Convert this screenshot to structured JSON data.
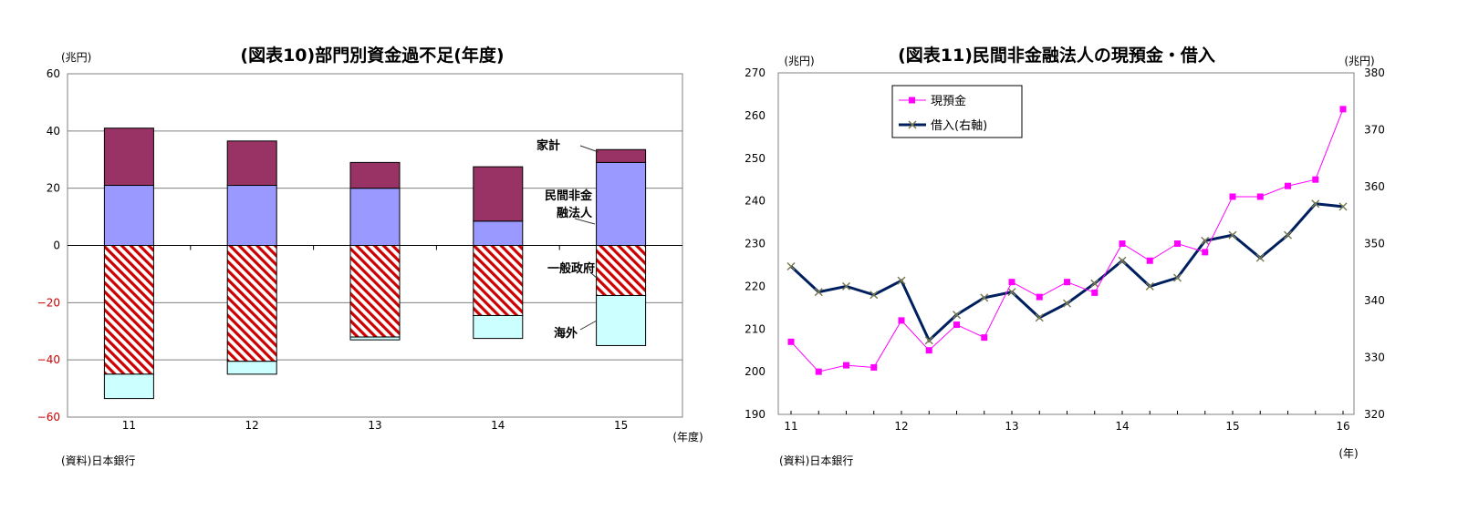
{
  "chart_data": [
    {
      "type": "bar",
      "stacked": true,
      "title": "(図表10)部門別資金過不足(年度)",
      "y_unit": "(兆円)",
      "x_unit": "(年度)",
      "source": "(資料)日本銀行",
      "ylim": [
        -60,
        60
      ],
      "yticks": [
        "60",
        "40",
        "20",
        "0",
        "−20",
        "−40",
        "−60"
      ],
      "ytick_values": [
        60,
        40,
        20,
        0,
        -20,
        -40,
        -60
      ],
      "categories": [
        "11",
        "12",
        "13",
        "14",
        "15"
      ],
      "series": [
        {
          "name": "民間非金融法人",
          "color": "#9999ff",
          "pattern": "solid",
          "values": [
            21,
            21,
            20,
            8.5,
            29
          ]
        },
        {
          "name": "家計",
          "color": "#993366",
          "pattern": "solid",
          "values": [
            20,
            15.5,
            9,
            19,
            4.5
          ]
        },
        {
          "name": "一般政府",
          "color": "#cc0000",
          "pattern": "hatch",
          "values": [
            -45,
            -40.5,
            -32,
            -24.5,
            -17.5
          ]
        },
        {
          "name": "海外",
          "color": "#ccffff",
          "pattern": "solid",
          "values": [
            -8.5,
            -4.5,
            -1,
            -8,
            -17.5
          ]
        }
      ],
      "annotations": {
        "kakei": "家計",
        "minkan_1": "民間非金",
        "minkan_2": "融法人",
        "seifu": "一般政府",
        "kaigai": "海外"
      }
    },
    {
      "type": "line",
      "title": "(図表11)民間非金融法人の現預金・借入",
      "y_unit_left": "(兆円)",
      "y_unit_right": "(兆円)",
      "x_unit": "(年)",
      "source": "(資料)日本銀行",
      "ylim_left": [
        190,
        270
      ],
      "ylim_right": [
        320,
        380
      ],
      "yticks_left": [
        "270",
        "260",
        "250",
        "240",
        "230",
        "220",
        "210",
        "200",
        "190"
      ],
      "ytick_values_left": [
        270,
        260,
        250,
        240,
        230,
        220,
        210,
        200,
        190
      ],
      "yticks_right": [
        "380",
        "370",
        "360",
        "350",
        "340",
        "330",
        "320"
      ],
      "ytick_values_right": [
        380,
        370,
        360,
        350,
        340,
        330,
        320
      ],
      "x_labels": [
        "11",
        "12",
        "13",
        "14",
        "15",
        "16"
      ],
      "x_label_values": [
        0,
        4,
        8,
        12,
        16,
        20
      ],
      "series": [
        {
          "name": "現預金",
          "axis": "left",
          "color": "#ff00ff",
          "values": [
            207,
            200,
            201.5,
            201,
            212,
            205,
            211,
            208,
            221,
            217.5,
            221,
            218.5,
            230,
            226,
            230,
            228,
            241,
            241,
            243.5,
            245,
            261.5
          ]
        },
        {
          "name": "借入(右軸)",
          "axis": "right",
          "color": "#001f5f",
          "values": [
            346,
            341.5,
            342.5,
            341,
            343.5,
            333,
            337.5,
            340.5,
            341.5,
            337,
            339.5,
            343,
            347,
            342.5,
            344,
            350.5,
            351.5,
            347.5,
            351.5,
            357,
            356.5
          ]
        }
      ],
      "legend_position": "top-left"
    }
  ]
}
